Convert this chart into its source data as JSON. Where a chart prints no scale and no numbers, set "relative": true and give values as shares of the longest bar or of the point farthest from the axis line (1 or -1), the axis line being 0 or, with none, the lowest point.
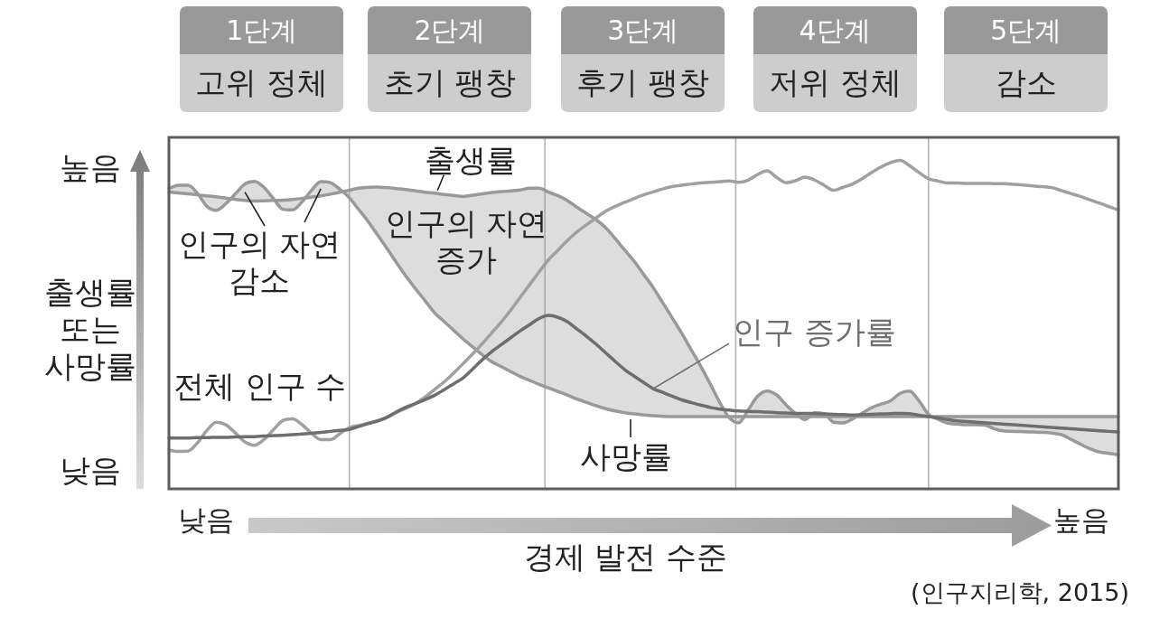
{
  "chart_data": {
    "type": "line",
    "relative": true,
    "xlabel": "경제 발전 수준",
    "ylabel": "출생률 또는 사망률",
    "annotations": [
      "1단계 고위 정체",
      "2단계 초기 팽창",
      "3단계 후기 팽창",
      "4단계 저위 정체",
      "5단계 감소",
      "높음",
      "낮음",
      "인구의 자연 감소",
      "인구의 자연 증가",
      "낮음",
      "높음",
      "(인구지리학, 2015)"
    ],
    "categories": [
      null,
      null,
      null,
      null,
      null,
      null,
      null,
      null,
      null,
      null,
      null,
      null,
      null,
      null,
      null,
      null,
      null,
      null,
      null,
      null,
      null,
      null,
      null,
      null,
      null,
      null,
      null,
      null,
      null,
      null,
      null,
      null,
      null,
      null,
      null,
      null,
      null,
      null,
      null,
      null,
      null,
      null,
      null,
      null,
      null,
      null,
      null,
      null,
      null,
      null,
      null,
      null,
      null,
      null,
      null,
      null,
      null,
      null,
      null,
      null,
      null,
      null,
      null,
      null,
      null,
      null,
      null,
      null,
      null,
      null,
      null,
      null,
      null,
      null,
      null,
      null,
      null,
      null,
      null,
      null,
      null,
      null,
      null,
      null,
      null,
      null,
      null,
      null,
      null,
      null,
      null,
      null,
      null,
      null,
      null,
      null,
      null,
      null,
      null,
      null,
      null
    ],
    "series": [
      {
        "name": "출생률",
        "color": "#999999",
        "values": [
          0.904,
          0.901,
          0.898,
          0.895,
          0.892,
          0.889,
          0.885,
          0.881,
          0.878,
          0.876,
          0.877,
          0.878,
          0.879,
          0.881,
          0.884,
          0.888,
          0.892,
          0.897,
          0.903,
          0.909,
          0.915,
          0.918,
          0.919,
          0.917,
          0.914,
          0.911,
          0.907,
          0.903,
          0.9,
          0.896,
          0.893,
          0.89,
          0.894,
          0.898,
          0.902,
          0.905,
          0.907,
          0.91,
          0.915,
          0.915,
          0.903,
          0.892,
          0.877,
          0.857,
          0.838,
          0.819,
          0.795,
          0.762,
          0.727,
          0.693,
          0.653,
          0.613,
          0.567,
          0.521,
          0.474,
          0.424,
          0.374,
          0.32,
          0.264,
          0.217,
          0.201,
          0.24,
          0.282,
          0.298,
          0.286,
          0.256,
          0.229,
          0.211,
          0.232,
          0.229,
          0.203,
          0.201,
          0.213,
          0.23,
          0.247,
          0.258,
          0.268,
          0.291,
          0.298,
          0.268,
          0.227,
          0.212,
          0.2,
          0.197,
          0.195,
          0.195,
          0.194,
          0.182,
          0.176,
          0.175,
          0.174,
          0.173,
          0.172,
          0.17,
          0.165,
          0.151,
          0.136,
          0.122,
          0.112,
          0.108,
          0.104
        ],
        "lower": [
          0.915,
          0.924,
          0.924,
          0.9,
          0.86,
          0.848,
          0.868,
          0.898,
          0.928,
          0.936,
          0.918,
          0.884,
          0.851,
          0.849,
          0.873,
          0.908,
          0.935,
          0.932,
          0.912,
          0.886,
          0.85,
          0.813,
          0.772,
          0.73,
          0.687,
          0.646,
          0.608,
          0.572,
          0.535,
          0.509,
          0.482,
          0.456,
          0.432,
          0.408,
          0.387,
          0.372,
          0.357,
          0.342,
          0.33,
          0.318,
          0.307,
          0.296,
          0.285,
          0.273,
          0.263,
          0.253,
          0.244,
          0.237,
          0.232,
          0.228,
          0.225,
          0.223,
          0.221,
          0.22,
          0.22,
          0.22,
          0.22,
          0.22,
          0.22,
          0.22,
          0.22,
          0.22,
          0.22,
          0.22,
          0.22,
          0.22,
          0.22,
          0.22,
          0.22,
          0.22,
          0.22,
          0.22,
          0.22,
          0.22,
          0.22,
          0.22,
          0.22,
          0.22,
          0.22,
          0.22,
          0.22,
          0.22,
          0.22,
          0.22,
          0.22,
          0.22,
          0.22,
          0.22,
          0.22,
          0.22,
          0.22,
          0.22,
          0.22,
          0.22,
          0.22,
          0.22,
          0.22,
          0.22,
          0.22,
          0.22,
          0.22
        ],
        "upper": [
          0.904,
          0.901,
          0.898,
          0.895,
          0.892,
          0.889,
          0.885,
          0.881,
          0.878,
          0.876,
          0.877,
          0.878,
          0.879,
          0.881,
          0.884,
          0.888,
          0.892,
          0.897,
          0.903,
          0.909,
          0.915,
          0.918,
          0.919,
          0.917,
          0.914,
          0.911,
          0.907,
          0.903,
          0.9,
          0.896,
          0.893,
          0.89,
          0.894,
          0.898,
          0.902,
          0.905,
          0.907,
          0.91,
          0.915,
          0.915,
          0.903,
          0.892,
          0.877,
          0.857,
          0.838,
          0.819,
          0.795,
          0.762,
          0.727,
          0.693,
          0.653,
          0.613,
          0.567,
          0.521,
          0.474,
          0.424,
          0.374,
          0.32,
          0.264,
          0.217,
          0.201,
          0.24,
          0.282,
          0.298,
          0.286,
          0.256,
          0.229,
          0.211,
          0.232,
          0.229,
          0.203,
          0.201,
          0.213,
          0.23,
          0.247,
          0.258,
          0.268,
          0.291,
          0.298,
          0.268,
          0.227,
          0.212,
          0.2,
          0.197,
          0.195,
          0.195,
          0.194,
          0.182,
          0.176,
          0.175,
          0.174,
          0.173,
          0.172,
          0.17,
          0.165,
          0.151,
          0.136,
          0.122,
          0.112,
          0.108,
          0.104
        ]
      },
      {
        "name": "사망률",
        "color": "#999999",
        "values": [
          0.915,
          0.924,
          0.924,
          0.9,
          0.86,
          0.848,
          0.868,
          0.898,
          0.928,
          0.936,
          0.918,
          0.884,
          0.851,
          0.849,
          0.873,
          0.908,
          0.935,
          0.932,
          0.912,
          0.886,
          0.85,
          0.813,
          0.772,
          0.73,
          0.687,
          0.646,
          0.608,
          0.572,
          0.535,
          0.509,
          0.482,
          0.456,
          0.432,
          0.408,
          0.387,
          0.372,
          0.357,
          0.342,
          0.33,
          0.318,
          0.307,
          0.296,
          0.285,
          0.273,
          0.263,
          0.253,
          0.244,
          0.237,
          0.232,
          0.228,
          0.225,
          0.223,
          0.221,
          0.22,
          0.22,
          0.22,
          0.22,
          0.22,
          0.22,
          0.22,
          0.22,
          0.22,
          0.22,
          0.22,
          0.22,
          0.22,
          0.22,
          0.22,
          0.22,
          0.22,
          0.22,
          0.22,
          0.22,
          0.22,
          0.22,
          0.22,
          0.22,
          0.22,
          0.22,
          0.22,
          0.22,
          0.22,
          0.22,
          0.22,
          0.22,
          0.22,
          0.22,
          0.22,
          0.22,
          0.22,
          0.22,
          0.22,
          0.22,
          0.22,
          0.22,
          0.22,
          0.22,
          0.22,
          0.22,
          0.22,
          0.22
        ]
      },
      {
        "name": "전체 인구 수",
        "color": "#a0a0a0",
        "values": [
          0.118,
          0.114,
          0.115,
          0.14,
          0.178,
          0.203,
          0.195,
          0.17,
          0.143,
          0.133,
          0.15,
          0.18,
          0.208,
          0.213,
          0.196,
          0.17,
          0.15,
          0.15,
          0.168,
          0.187,
          0.193,
          0.2,
          0.207,
          0.219,
          0.233,
          0.246,
          0.26,
          0.28,
          0.303,
          0.326,
          0.353,
          0.382,
          0.411,
          0.442,
          0.475,
          0.508,
          0.544,
          0.583,
          0.622,
          0.661,
          0.698,
          0.727,
          0.757,
          0.783,
          0.804,
          0.825,
          0.845,
          0.86,
          0.872,
          0.884,
          0.895,
          0.904,
          0.913,
          0.92,
          0.924,
          0.928,
          0.931,
          0.933,
          0.935,
          0.937,
          0.933,
          0.94,
          0.957,
          0.968,
          0.948,
          0.932,
          0.938,
          0.949,
          0.94,
          0.924,
          0.909,
          0.918,
          0.928,
          0.944,
          0.963,
          0.98,
          0.993,
          1,
          0.984,
          0.963,
          0.944,
          0.937,
          0.931,
          0.931,
          0.93,
          0.93,
          0.93,
          0.929,
          0.929,
          0.927,
          0.925,
          0.922,
          0.92,
          0.917,
          0.908,
          0.899,
          0.89,
          0.88,
          0.87,
          0.859,
          0.849
        ]
      },
      {
        "name": "인구 증가률",
        "color": "#6e6e6e",
        "values": [
          0.154,
          0.155,
          0.155,
          0.156,
          0.156,
          0.157,
          0.157,
          0.158,
          0.159,
          0.159,
          0.161,
          0.162,
          0.163,
          0.165,
          0.167,
          0.169,
          0.172,
          0.175,
          0.178,
          0.181,
          0.19,
          0.199,
          0.207,
          0.218,
          0.235,
          0.249,
          0.26,
          0.272,
          0.285,
          0.302,
          0.32,
          0.338,
          0.365,
          0.393,
          0.418,
          0.439,
          0.46,
          0.481,
          0.5,
          0.519,
          0.528,
          0.522,
          0.508,
          0.486,
          0.464,
          0.44,
          0.414,
          0.388,
          0.363,
          0.343,
          0.324,
          0.305,
          0.294,
          0.282,
          0.271,
          0.263,
          0.255,
          0.248,
          0.243,
          0.24,
          0.237,
          0.236,
          0.235,
          0.234,
          0.232,
          0.231,
          0.23,
          0.23,
          0.229,
          0.228,
          0.227,
          0.226,
          0.225,
          0.226,
          0.227,
          0.228,
          0.229,
          0.23,
          0.229,
          0.224,
          0.22,
          0.216,
          0.211,
          0.207,
          0.205,
          0.203,
          0.201,
          0.199,
          0.197,
          0.195,
          0.193,
          0.191,
          0.189,
          0.187,
          0.185,
          0.183,
          0.181,
          0.179,
          0.177,
          0.175,
          0.173
        ]
      }
    ]
  }
}
